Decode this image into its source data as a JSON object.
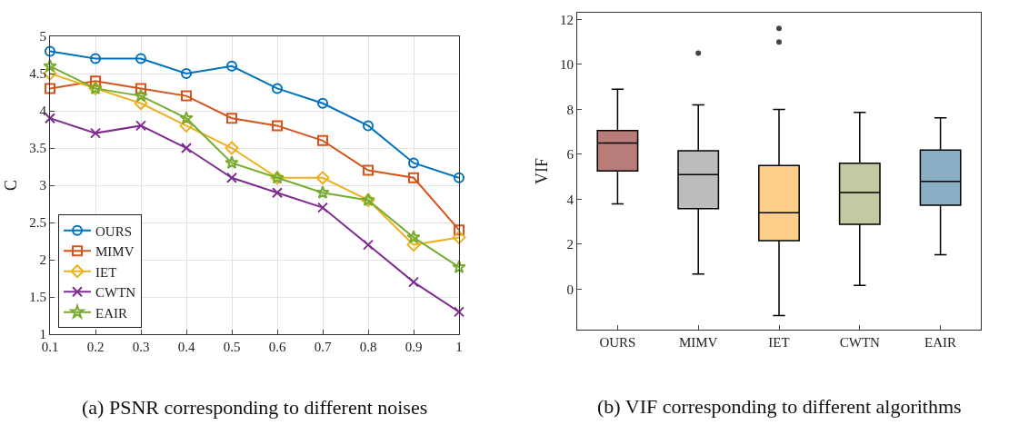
{
  "chart_data": [
    {
      "type": "line",
      "ylabel": "C",
      "annotations": [
        "(a) PSNR corresponding to different noises"
      ],
      "x": [
        0.1,
        0.2,
        0.3,
        0.4,
        0.5,
        0.6,
        0.7,
        0.8,
        0.9,
        1
      ],
      "xlim": [
        0.1,
        1
      ],
      "xticks": [
        {
          "value": 0.1,
          "label": "0.1"
        },
        {
          "value": 0.2,
          "label": "0.2"
        },
        {
          "value": 0.3,
          "label": "0.3"
        },
        {
          "value": 0.4,
          "label": "0.4"
        },
        {
          "value": 0.5,
          "label": "0.5"
        },
        {
          "value": 0.6,
          "label": "0.6"
        },
        {
          "value": 0.7,
          "label": "0.7"
        },
        {
          "value": 0.8,
          "label": "0.8"
        },
        {
          "value": 0.9,
          "label": "0.9"
        },
        1
      ],
      "ylim": [
        1,
        5
      ],
      "yticks": [
        1,
        1.5,
        2,
        2.5,
        3,
        3.5,
        4,
        4.5,
        5
      ],
      "grid": true,
      "legend": "bottom left",
      "line_style": "solid",
      "series": [
        {
          "name": "OURS",
          "color": "#0072bd",
          "marker": "circle",
          "values": [
            4.8,
            4.7,
            4.7,
            4.5,
            4.6,
            4.3,
            4.1,
            3.8,
            3.3,
            3.1
          ]
        },
        {
          "name": "MIMV",
          "color": "#d95319",
          "marker": "square",
          "values": [
            4.3,
            4.4,
            4.3,
            4.2,
            3.9,
            3.8,
            3.6,
            3.2,
            3.1,
            2.4
          ]
        },
        {
          "name": "IET",
          "color": "#edb120",
          "marker": "diamond",
          "values": [
            4.5,
            4.3,
            4.1,
            3.8,
            3.5,
            3.1,
            3.1,
            2.8,
            2.2,
            2.3
          ]
        },
        {
          "name": "CWTN",
          "color": "#7e2f8e",
          "marker": "cross",
          "values": [
            3.9,
            3.7,
            3.8,
            3.5,
            3.1,
            2.9,
            2.7,
            2.2,
            1.7,
            1.3
          ]
        },
        {
          "name": "EAIR",
          "color": "#77ac30",
          "marker": "star",
          "values": [
            4.6,
            4.3,
            4.2,
            3.9,
            3.3,
            3.1,
            2.9,
            2.8,
            2.3,
            1.9
          ]
        }
      ]
    },
    {
      "type": "box",
      "ylabel": "VIF",
      "annotations": [
        "(b) VIF corresponding to different algorithms"
      ],
      "categories": [
        "OURS",
        "MIMV",
        "IET",
        "CWTN",
        "EAIR"
      ],
      "colors": [
        "#b97d79",
        "#bdbbbb",
        "#fdcf8b",
        "#c3c9a1",
        "#8aaec3"
      ],
      "ylim": [
        -1.8,
        12.3
      ],
      "yticks": [
        0,
        2,
        4,
        6,
        8,
        10,
        12
      ],
      "grid": false,
      "legend": false,
      "boxes": [
        {
          "low": 3.8,
          "q1": 5.26,
          "median": 6.5,
          "q3": 7.06,
          "high": 8.9
        },
        {
          "low": 0.67,
          "q1": 3.58,
          "median": 5.1,
          "q3": 6.16,
          "high": 8.2,
          "outliers": [
            10.5
          ]
        },
        {
          "low": -1.17,
          "q1": 2.16,
          "median": 3.4,
          "q3": 5.5,
          "high": 8.0,
          "outliers": [
            11.6,
            11.0
          ]
        },
        {
          "low": 0.17,
          "q1": 2.89,
          "median": 4.3,
          "q3": 5.6,
          "high": 7.87
        },
        {
          "low": 1.53,
          "q1": 3.74,
          "median": 4.8,
          "q3": 6.19,
          "high": 7.62
        }
      ]
    }
  ]
}
